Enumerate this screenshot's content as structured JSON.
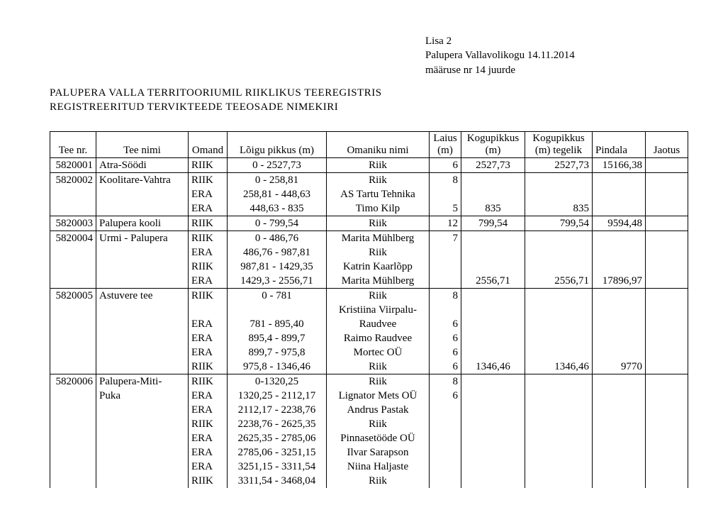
{
  "header": {
    "line1": "Lisa 2",
    "line2": "Palupera Vallavolikogu 14.11.2014",
    "line3": "määruse nr 14 juurde"
  },
  "title": {
    "line1": "PALUPERA  VALLA  TERRITOORIUMIL  RIIKLIKUS  TEEREGISTRIS",
    "line2": "REGISTREERITUD  TERVIKTEEDE  TEEOSADE  NIMEKIRI"
  },
  "columns": {
    "tee_nr": "Tee nr.",
    "tee_nimi": "Tee nimi",
    "omand": "Omand",
    "loigu_pikkus": "Lõigu pikkus (m)",
    "omaniku_nimi": "Omaniku nimi",
    "laius": "Laius (m)",
    "kogupikkus": "Kogupikkus (m)",
    "kogupikkus_tegelik": "Kogupikkus (m) tegelik",
    "pindala": "Pindala",
    "jaotus": "Jaotus"
  },
  "rows": [
    {
      "tee_nr": "5820001",
      "tee_nimi": "Atra-Söödi",
      "omand": "RIIK",
      "loik": "0 - 2527,73",
      "omanik": "Riik",
      "laius": "6",
      "kp": "2527,73",
      "kpt": "2527,73",
      "pind": "15166,38",
      "group": "top"
    },
    {
      "tee_nr": "5820002",
      "tee_nimi": "Koolitare-Vahtra",
      "omand": "RIIK",
      "loik": "0 - 258,81",
      "omanik": "Riik",
      "laius": "8",
      "kp": "",
      "kpt": "",
      "pind": "",
      "group": "top"
    },
    {
      "tee_nr": "",
      "tee_nimi": "",
      "omand": "ERA",
      "loik": "258,81 - 448,63",
      "omanik": "AS Tartu Tehnika",
      "laius": "",
      "kp": "",
      "kpt": "",
      "pind": "",
      "group": "mid"
    },
    {
      "tee_nr": "",
      "tee_nimi": "",
      "omand": "ERA",
      "loik": "448,63 - 835",
      "omanik": "Timo Kilp",
      "laius": "5",
      "kp": "835",
      "kpt": "835",
      "pind": "",
      "group": "bot"
    },
    {
      "tee_nr": "5820003",
      "tee_nimi": "Palupera kooli",
      "omand": "RIIK",
      "loik": "0 - 799,54",
      "omanik": "Riik",
      "laius": "12",
      "kp": "799,54",
      "kpt": "799,54",
      "pind": "9594,48",
      "group": "top"
    },
    {
      "tee_nr": "5820004",
      "tee_nimi": "Urmi - Palupera",
      "omand": "RIIK",
      "loik": "0 - 486,76",
      "omanik": "Marita Mühlberg",
      "laius": "7",
      "kp": "",
      "kpt": "",
      "pind": "",
      "group": "top"
    },
    {
      "tee_nr": "",
      "tee_nimi": "",
      "omand": "ERA",
      "loik": "486,76 - 987,81",
      "omanik": "Riik",
      "laius": "",
      "kp": "",
      "kpt": "",
      "pind": "",
      "group": "mid"
    },
    {
      "tee_nr": "",
      "tee_nimi": "",
      "omand": "RIIK",
      "loik": "987,81 - 1429,35",
      "omanik": "Katrin Kaarlõpp",
      "laius": "",
      "kp": "",
      "kpt": "",
      "pind": "",
      "group": "mid"
    },
    {
      "tee_nr": "",
      "tee_nimi": "",
      "omand": "ERA",
      "loik": "1429,3 - 2556,71",
      "omanik": "Marita Mühlberg",
      "laius": "",
      "kp": "2556,71",
      "kpt": "2556,71",
      "pind": "17896,97",
      "group": "bot"
    },
    {
      "tee_nr": "5820005",
      "tee_nimi": "Astuvere tee",
      "omand": "RIIK",
      "loik": "0 - 781",
      "omanik": "Riik",
      "laius": "8",
      "kp": "",
      "kpt": "",
      "pind": "",
      "group": "top"
    },
    {
      "tee_nr": "",
      "tee_nimi": "",
      "omand": "",
      "loik": "",
      "omanik": "Kristiina Viirpalu-",
      "laius": "",
      "kp": "",
      "kpt": "",
      "pind": "",
      "group": "mid"
    },
    {
      "tee_nr": "",
      "tee_nimi": "",
      "omand": "ERA",
      "loik": "781 - 895,40",
      "omanik": "Raudvee",
      "laius": "6",
      "kp": "",
      "kpt": "",
      "pind": "",
      "group": "mid"
    },
    {
      "tee_nr": "",
      "tee_nimi": "",
      "omand": "ERA",
      "loik": "895,4 - 899,7",
      "omanik": "Raimo Raudvee",
      "laius": "6",
      "kp": "",
      "kpt": "",
      "pind": "",
      "group": "mid"
    },
    {
      "tee_nr": "",
      "tee_nimi": "",
      "omand": "ERA",
      "loik": "899,7 - 975,8",
      "omanik": "Mortec OÜ",
      "laius": "6",
      "kp": "",
      "kpt": "",
      "pind": "",
      "group": "mid"
    },
    {
      "tee_nr": "",
      "tee_nimi": "",
      "omand": "RIIK",
      "loik": "975,8 - 1346,46",
      "omanik": "Riik",
      "laius": "6",
      "kp": "1346,46",
      "kpt": "1346,46",
      "pind": "9770",
      "group": "bot"
    },
    {
      "tee_nr": "5820006",
      "tee_nimi": " Palupera-Miti-",
      "omand": "RIIK",
      "loik": "0-1320,25",
      "omanik": "Riik",
      "laius": "8",
      "kp": "",
      "kpt": "",
      "pind": "",
      "group": "top"
    },
    {
      "tee_nr": "",
      "tee_nimi": "Puka",
      "omand": "ERA",
      "loik": "1320,25 - 2112,17",
      "omanik": "Lignator Mets OÜ",
      "laius": "6",
      "kp": "",
      "kpt": "",
      "pind": "",
      "group": "mid"
    },
    {
      "tee_nr": "",
      "tee_nimi": "",
      "omand": "ERA",
      "loik": "2112,17 - 2238,76",
      "omanik": "Andrus Pastak",
      "laius": "",
      "kp": "",
      "kpt": "",
      "pind": "",
      "group": "mid"
    },
    {
      "tee_nr": "",
      "tee_nimi": "",
      "omand": "RIIK",
      "loik": "2238,76 - 2625,35",
      "omanik": "Riik",
      "laius": "",
      "kp": "",
      "kpt": "",
      "pind": "",
      "group": "mid"
    },
    {
      "tee_nr": "",
      "tee_nimi": "",
      "omand": "ERA",
      "loik": "2625,35 - 2785,06",
      "omanik": "Pinnasetööde OÜ",
      "laius": "",
      "kp": "",
      "kpt": "",
      "pind": "",
      "group": "mid"
    },
    {
      "tee_nr": "",
      "tee_nimi": "",
      "omand": "ERA",
      "loik": "2785,06 - 3251,15",
      "omanik": "Ilvar Sarapson",
      "laius": "",
      "kp": "",
      "kpt": "",
      "pind": "",
      "group": "mid"
    },
    {
      "tee_nr": "",
      "tee_nimi": "",
      "omand": "ERA",
      "loik": "3251,15 - 3311,54",
      "omanik": "Niina Haljaste",
      "laius": "",
      "kp": "",
      "kpt": "",
      "pind": "",
      "group": "mid"
    },
    {
      "tee_nr": "",
      "tee_nimi": "",
      "omand": "RIIK",
      "loik": "3311,54 - 3468,04",
      "omanik": "Riik",
      "laius": "",
      "kp": "",
      "kpt": "",
      "pind": "",
      "group": "mid"
    }
  ]
}
